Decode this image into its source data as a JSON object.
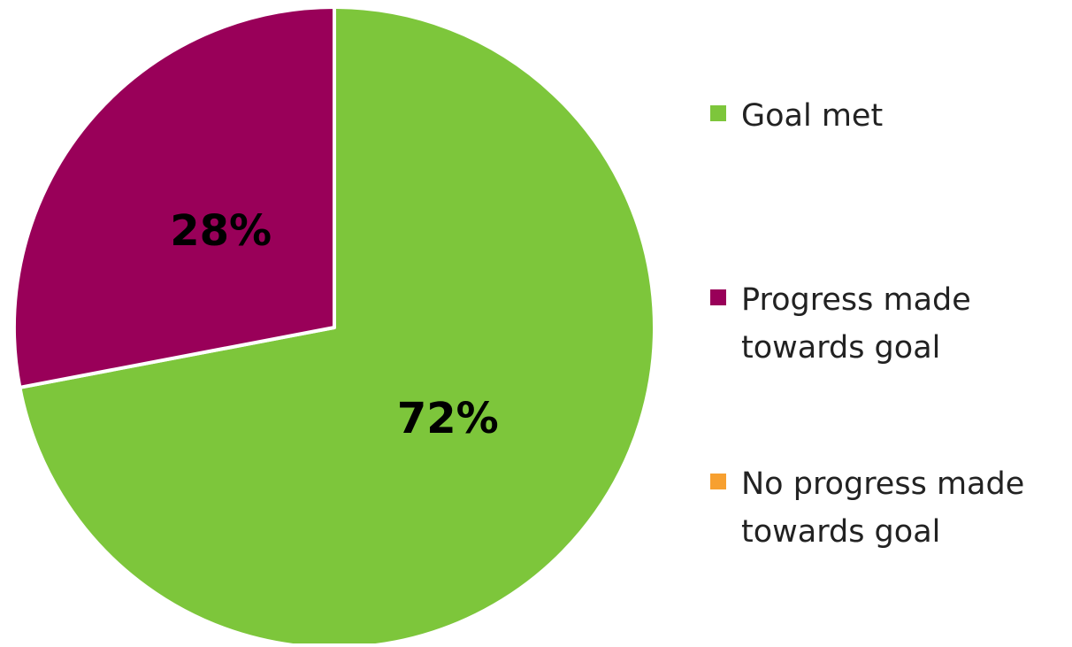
{
  "chart_data": {
    "type": "pie",
    "slices": [
      {
        "name": "Goal met",
        "value": 72,
        "label": "72%",
        "color": "#7dc63b"
      },
      {
        "name": "Progress made towards goal",
        "value": 28,
        "label": "28%",
        "color": "#990059"
      },
      {
        "name": "No progress made towards goal",
        "value": 0,
        "label": "",
        "color": "#f7a030"
      }
    ],
    "legend": {
      "placement": "right",
      "entries": [
        {
          "text": "Goal met",
          "color": "#7dc63b"
        },
        {
          "text": "Progress made towards goal",
          "color": "#990059"
        },
        {
          "text": "No progress made towards goal",
          "color": "#f7a030"
        }
      ]
    },
    "start_angle": "12 o'clock",
    "direction": "clockwise"
  }
}
